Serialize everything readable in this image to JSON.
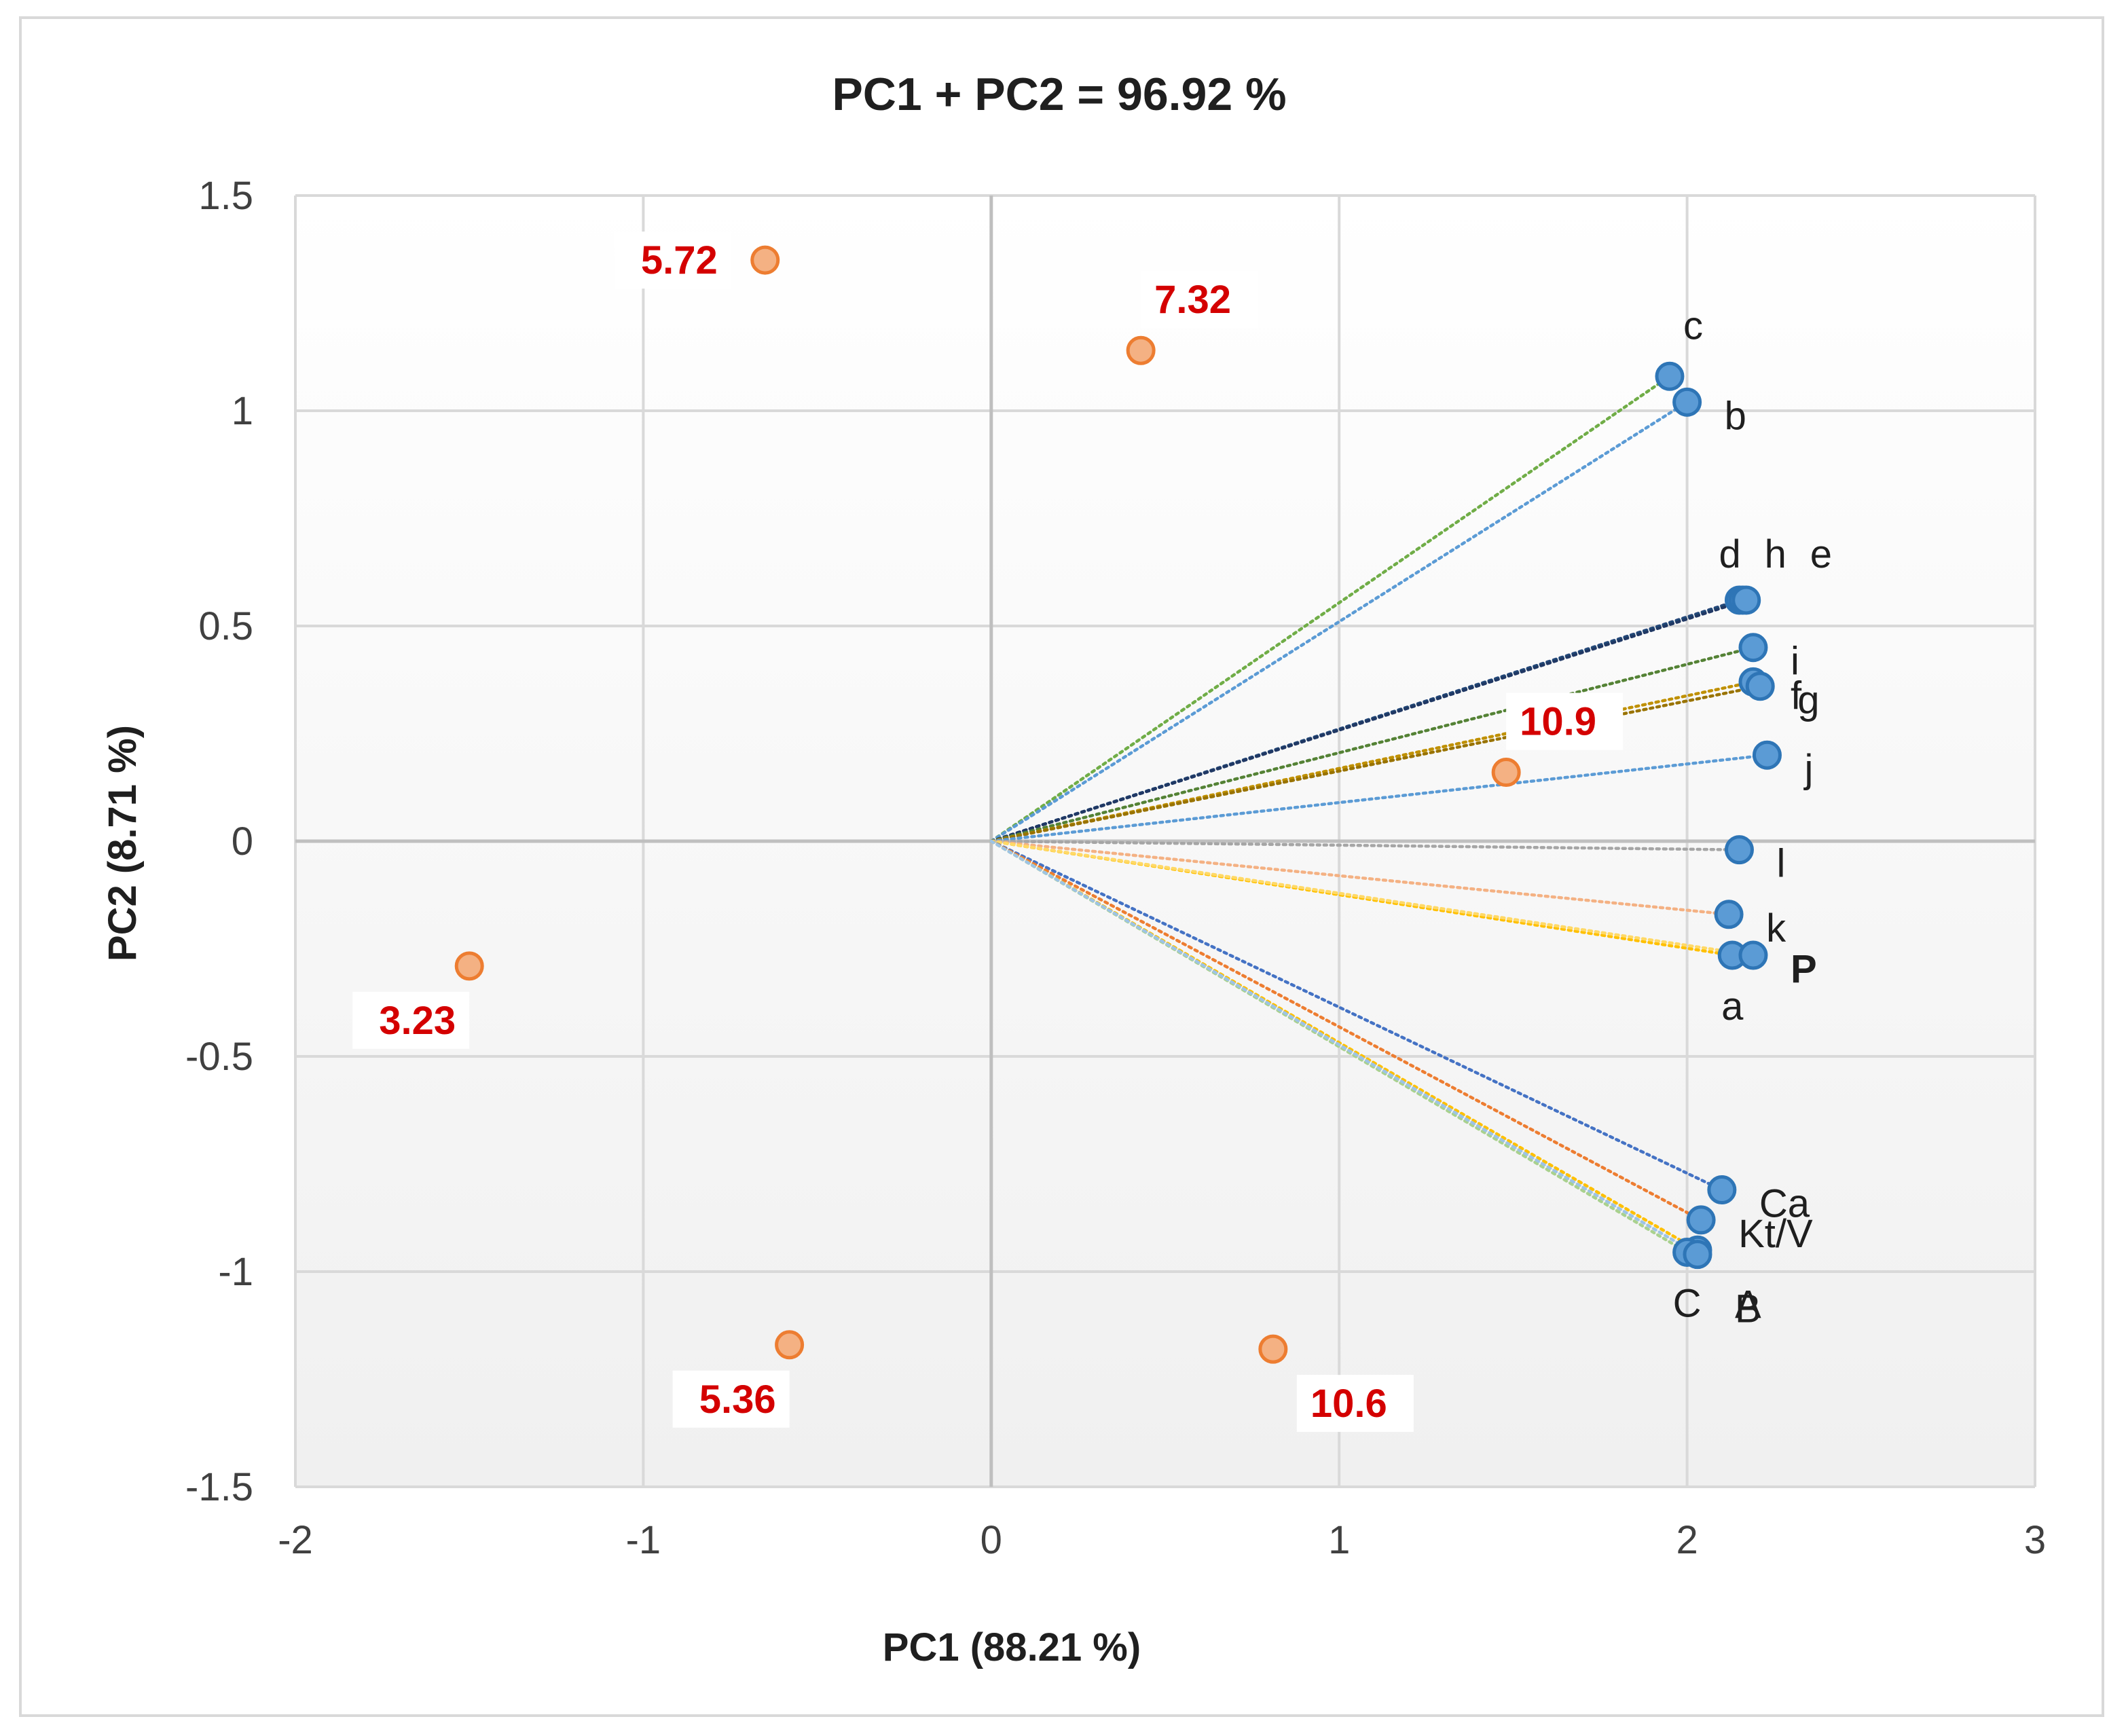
{
  "chart_data": {
    "type": "scatter",
    "title": "PC1 + PC2 = 96.92 %",
    "xlabel": "PC1 (88.21 %)",
    "ylabel": "PC2 (8.71 %)",
    "xlim": [
      -2,
      3
    ],
    "ylim": [
      -1.5,
      1.5
    ],
    "xticks": [
      -2,
      -1,
      0,
      1,
      2,
      3
    ],
    "yticks": [
      -1.5,
      -1,
      -0.5,
      0,
      0.5,
      1,
      1.5
    ],
    "grid": true,
    "series": [
      {
        "name": "variables",
        "marker_color": "#5b9bd5",
        "marker_edge": "#2e75b6",
        "points": [
          {
            "label": "c",
            "x": 1.95,
            "y": 1.08,
            "line_color": "#70ad47",
            "label_pos": "upper-right",
            "label_color": "#1f1f1f"
          },
          {
            "label": "b",
            "x": 2.0,
            "y": 1.02,
            "line_color": "#5b9bd5",
            "label_pos": "right",
            "label_color": "#1f1f1f"
          },
          {
            "label": "d",
            "x": 2.15,
            "y": 0.56,
            "line_color": "#264478",
            "label_pos": "above",
            "label_color": "#1f1f1f"
          },
          {
            "label": "h",
            "x": 2.16,
            "y": 0.56,
            "line_color": "#1f4e79",
            "label_pos": "above",
            "label_color": "#1f1f1f"
          },
          {
            "label": "e",
            "x": 2.17,
            "y": 0.56,
            "line_color": "#203864",
            "label_pos": "above",
            "label_color": "#1f1f1f"
          },
          {
            "label": "i",
            "x": 2.19,
            "y": 0.45,
            "line_color": "#548235",
            "label_pos": "right",
            "label_color": "#1f1f1f"
          },
          {
            "label": "f",
            "x": 2.19,
            "y": 0.37,
            "line_color": "#bf9000",
            "label_pos": "right",
            "label_color": "#1f1f1f"
          },
          {
            "label": "g",
            "x": 2.21,
            "y": 0.36,
            "line_color": "#997300",
            "label_pos": "right",
            "label_color": "#1f1f1f"
          },
          {
            "label": "j",
            "x": 2.23,
            "y": 0.2,
            "line_color": "#5b9bd5",
            "label_pos": "right",
            "label_color": "#1f1f1f"
          },
          {
            "label": "l",
            "x": 2.15,
            "y": -0.02,
            "line_color": "#a5a5a5",
            "label_pos": "right",
            "label_color": "#1f1f1f"
          },
          {
            "label": "k",
            "x": 2.12,
            "y": -0.17,
            "line_color": "#f4b183",
            "label_pos": "right",
            "label_color": "#1f1f1f"
          },
          {
            "label": "a",
            "x": 2.13,
            "y": -0.265,
            "line_color": "#ffc000",
            "label_pos": "below",
            "label_color": "#1f1f1f"
          },
          {
            "label": "P",
            "x": 2.19,
            "y": -0.265,
            "line_color": "#ffd966",
            "label_pos": "right",
            "label_color": "#e00000"
          },
          {
            "label": "Ca",
            "x": 2.1,
            "y": -0.81,
            "line_color": "#4472c4",
            "label_pos": "right",
            "label_color": "#1f1f1f"
          },
          {
            "label": "Kt/V",
            "x": 2.04,
            "y": -0.88,
            "line_color": "#ed7d31",
            "label_pos": "right",
            "label_color": "#1f1f1f"
          },
          {
            "label": "A",
            "x": 2.03,
            "y": -0.95,
            "line_color": "#ffc000",
            "label_pos": "lower-right",
            "label_color": "#1f1f1f"
          },
          {
            "label": "C",
            "x": 2.0,
            "y": -0.955,
            "line_color": "#a9d18e",
            "label_pos": "below",
            "label_color": "#1f1f1f"
          },
          {
            "label": "B",
            "x": 2.03,
            "y": -0.96,
            "line_color": "#9dc3e6",
            "label_pos": "lower-right",
            "label_color": "#1f1f1f"
          }
        ]
      },
      {
        "name": "observations",
        "marker_color": "#f4b183",
        "marker_edge": "#ed7d31",
        "points": [
          {
            "label": "5.72",
            "x": -0.65,
            "y": 1.35,
            "label_pos": "left"
          },
          {
            "label": "7.32",
            "x": 0.43,
            "y": 1.14,
            "label_pos": "upper-right"
          },
          {
            "label": "10.9",
            "x": 1.48,
            "y": 0.16,
            "label_pos": "upper-right"
          },
          {
            "label": "3.23",
            "x": -1.5,
            "y": -0.29,
            "label_pos": "lower-left"
          },
          {
            "label": "5.36",
            "x": -0.58,
            "y": -1.17,
            "label_pos": "lower-left"
          },
          {
            "label": "10.6",
            "x": 0.81,
            "y": -1.18,
            "label_pos": "lower-right"
          }
        ]
      }
    ],
    "axis_color": "#bfbfbf",
    "grid_color": "#d9d9d9"
  }
}
